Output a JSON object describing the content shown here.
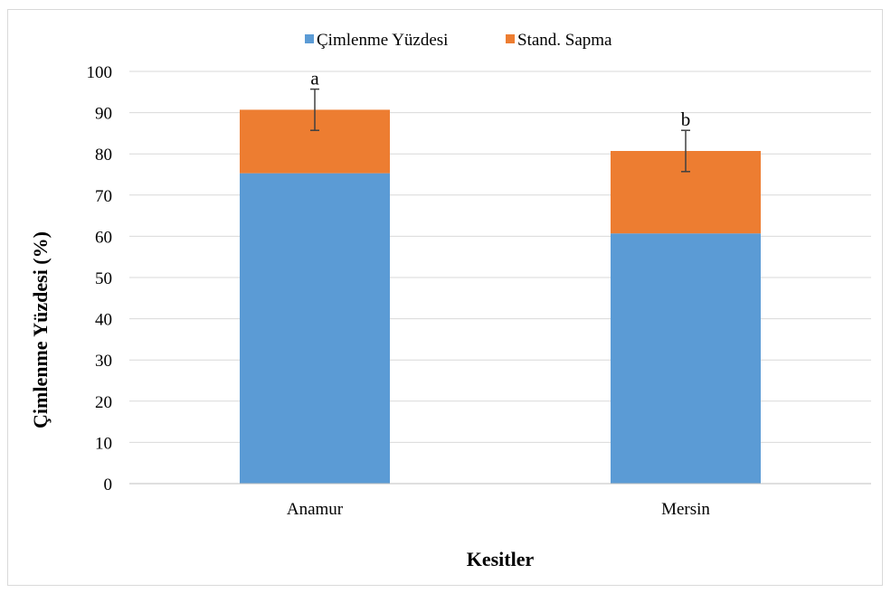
{
  "chart_data": {
    "type": "bar",
    "stacked": true,
    "categories": [
      "Anamur",
      "Mersin"
    ],
    "series": [
      {
        "name": "Çimlenme Yüzdesi",
        "values": [
          75.3,
          60.7
        ],
        "color": "#5b9bd5"
      },
      {
        "name": "Stand. Sapma",
        "values": [
          15.4,
          20.0
        ],
        "color": "#ed7d31"
      }
    ],
    "error_bars": [
      {
        "center": 90.7,
        "low": 85.7,
        "high": 95.7
      },
      {
        "center": 80.7,
        "low": 75.7,
        "high": 85.7
      }
    ],
    "annotations": [
      "a",
      "b"
    ],
    "xlabel": "Kesitler",
    "ylabel": "Çimlenme Yüzdesi (%)",
    "ylim": [
      0,
      100
    ],
    "yticks": [
      "0",
      "10",
      "20",
      "30",
      "40",
      "50",
      "60",
      "70",
      "80",
      "90",
      "100"
    ],
    "grid": true,
    "legend_position": "top"
  }
}
